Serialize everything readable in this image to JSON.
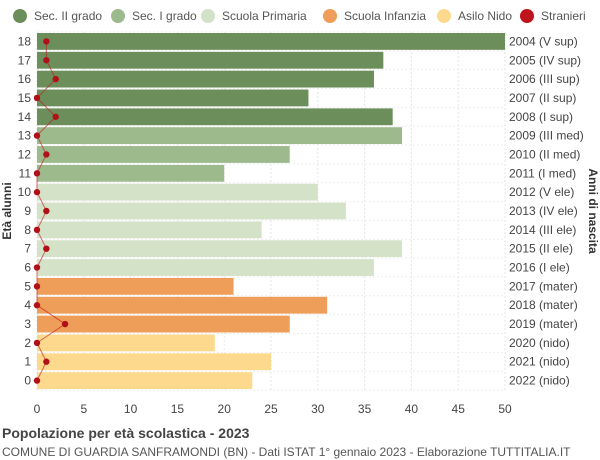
{
  "chart_data": {
    "type": "bar",
    "orientation": "horizontal",
    "title": "Popolazione per età scolastica - 2023",
    "subtitle": "COMUNE DI GUARDIA SANFRAMONDI (BN) - Dati ISTAT 1° gennaio 2023 - Elaborazione TUTTITALIA.IT",
    "ylabel_left": "Età alunni",
    "ylabel_right": "Anni di nascita",
    "xlim": [
      0,
      50
    ],
    "xticks": [
      0,
      5,
      10,
      15,
      20,
      25,
      30,
      35,
      40,
      45,
      50
    ],
    "grid": true,
    "legend": [
      {
        "name": "Sec. II grado",
        "color": "#6b8e5a",
        "marker": "circle"
      },
      {
        "name": "Sec. I grado",
        "color": "#9dba8c",
        "marker": "circle"
      },
      {
        "name": "Scuola Primaria",
        "color": "#d4e2c8",
        "marker": "circle"
      },
      {
        "name": "Scuola Infanzia",
        "color": "#ee9e58",
        "marker": "circle"
      },
      {
        "name": "Asilo Nido",
        "color": "#fdd98d",
        "marker": "circle"
      },
      {
        "name": "Stranieri",
        "color": "#c0141c",
        "marker": "circle"
      }
    ],
    "rows": [
      {
        "age": "18",
        "year": "2004 (V sup)",
        "value": 50,
        "group": "Sec. II grado",
        "stranieri": 1
      },
      {
        "age": "17",
        "year": "2005 (IV sup)",
        "value": 37,
        "group": "Sec. II grado",
        "stranieri": 1
      },
      {
        "age": "16",
        "year": "2006 (III sup)",
        "value": 36,
        "group": "Sec. II grado",
        "stranieri": 2
      },
      {
        "age": "15",
        "year": "2007 (II sup)",
        "value": 29,
        "group": "Sec. II grado",
        "stranieri": 0
      },
      {
        "age": "14",
        "year": "2008 (I sup)",
        "value": 38,
        "group": "Sec. II grado",
        "stranieri": 2
      },
      {
        "age": "13",
        "year": "2009 (III med)",
        "value": 39,
        "group": "Sec. I grado",
        "stranieri": 0
      },
      {
        "age": "12",
        "year": "2010 (II med)",
        "value": 27,
        "group": "Sec. I grado",
        "stranieri": 1
      },
      {
        "age": "11",
        "year": "2011 (I med)",
        "value": 20,
        "group": "Sec. I grado",
        "stranieri": 0
      },
      {
        "age": "10",
        "year": "2012 (V ele)",
        "value": 30,
        "group": "Scuola Primaria",
        "stranieri": 0
      },
      {
        "age": "9",
        "year": "2013 (IV ele)",
        "value": 33,
        "group": "Scuola Primaria",
        "stranieri": 1
      },
      {
        "age": "8",
        "year": "2014 (III ele)",
        "value": 24,
        "group": "Scuola Primaria",
        "stranieri": 0
      },
      {
        "age": "7",
        "year": "2015 (II ele)",
        "value": 39,
        "group": "Scuola Primaria",
        "stranieri": 1
      },
      {
        "age": "6",
        "year": "2016 (I ele)",
        "value": 36,
        "group": "Scuola Primaria",
        "stranieri": 0
      },
      {
        "age": "5",
        "year": "2017 (mater)",
        "value": 21,
        "group": "Scuola Infanzia",
        "stranieri": 0
      },
      {
        "age": "4",
        "year": "2018 (mater)",
        "value": 31,
        "group": "Scuola Infanzia",
        "stranieri": 0
      },
      {
        "age": "3",
        "year": "2019 (mater)",
        "value": 27,
        "group": "Scuola Infanzia",
        "stranieri": 3
      },
      {
        "age": "2",
        "year": "2020 (nido)",
        "value": 19,
        "group": "Asilo Nido",
        "stranieri": 0
      },
      {
        "age": "1",
        "year": "2021 (nido)",
        "value": 25,
        "group": "Asilo Nido",
        "stranieri": 1
      },
      {
        "age": "0",
        "year": "2022 (nido)",
        "value": 23,
        "group": "Asilo Nido",
        "stranieri": 0
      }
    ]
  }
}
